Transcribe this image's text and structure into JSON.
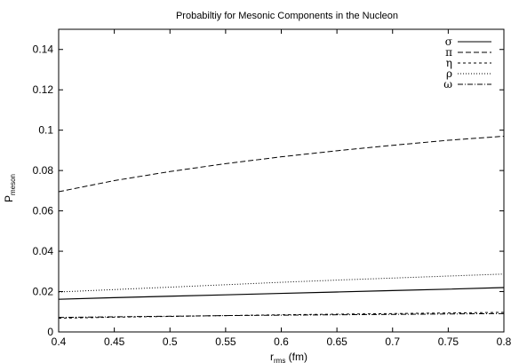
{
  "chart_data": {
    "type": "line",
    "title": "Probabiltiy for Mesonic Components in the Nucleon",
    "xlabel": {
      "main": "r",
      "sub": "rms",
      "unit": " (fm)"
    },
    "ylabel": {
      "main": "P",
      "sub": "meson"
    },
    "xlim": [
      0.4,
      0.8
    ],
    "ylim": [
      0,
      0.15
    ],
    "xticks": [
      {
        "value": 0.4,
        "label": "0.4"
      },
      {
        "value": 0.45,
        "label": "0.45"
      },
      {
        "value": 0.5,
        "label": "0.5"
      },
      {
        "value": 0.55,
        "label": "0.55"
      },
      {
        "value": 0.6,
        "label": "0.6"
      },
      {
        "value": 0.65,
        "label": "0.65"
      },
      {
        "value": 0.7,
        "label": "0.7"
      },
      {
        "value": 0.75,
        "label": "0.75"
      },
      {
        "value": 0.8,
        "label": "0.8"
      }
    ],
    "yticks": [
      {
        "value": 0,
        "label": "0"
      },
      {
        "value": 0.02,
        "label": "0.02"
      },
      {
        "value": 0.04,
        "label": "0.04"
      },
      {
        "value": 0.06,
        "label": "0.06"
      },
      {
        "value": 0.08,
        "label": "0.08"
      },
      {
        "value": 0.1,
        "label": "0.1"
      },
      {
        "value": 0.12,
        "label": "0.12"
      },
      {
        "value": 0.14,
        "label": "0.14"
      }
    ],
    "grid": false,
    "legend_position": "top-right",
    "x": [
      0.4,
      0.45,
      0.5,
      0.55,
      0.6,
      0.65,
      0.7,
      0.75,
      0.8
    ],
    "series": [
      {
        "name": "σ",
        "dash": "solid",
        "values": [
          0.0162,
          0.017,
          0.0177,
          0.0184,
          0.0191,
          0.0198,
          0.0205,
          0.0212,
          0.022
        ]
      },
      {
        "name": "π",
        "dash": "dashed",
        "values": [
          0.0695,
          0.075,
          0.0795,
          0.0834,
          0.0868,
          0.0898,
          0.0925,
          0.095,
          0.097
        ]
      },
      {
        "name": "η",
        "dash": "short-dash",
        "values": [
          0.0068,
          0.0073,
          0.0077,
          0.0081,
          0.0085,
          0.0088,
          0.0091,
          0.0094,
          0.0097
        ]
      },
      {
        "name": "ρ",
        "dash": "dotted",
        "values": [
          0.0198,
          0.021,
          0.0222,
          0.0234,
          0.0246,
          0.0257,
          0.0267,
          0.0277,
          0.0287
        ]
      },
      {
        "name": "ω",
        "dash": "dash-dot",
        "values": [
          0.0072,
          0.0075,
          0.0078,
          0.0081,
          0.0083,
          0.0085,
          0.0087,
          0.0089,
          0.0091
        ]
      }
    ],
    "color": "#000000"
  }
}
